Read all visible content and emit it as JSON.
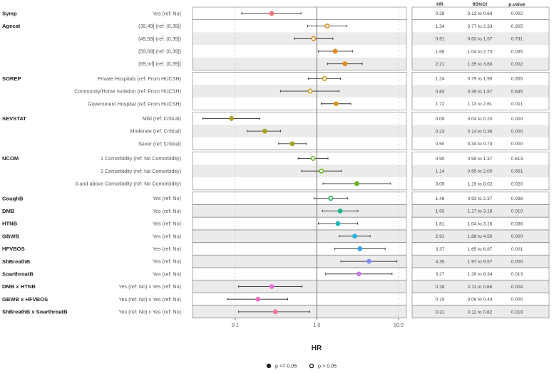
{
  "chart_data": {
    "type": "scatter",
    "subtype": "forest-plot",
    "xlabel": "HR",
    "x_scale": "log",
    "xlim": [
      0.03,
      12.5
    ],
    "x_ticks": [
      {
        "value": 0.1,
        "label": "0.1"
      },
      {
        "value": 1.0,
        "label": "1.0"
      },
      {
        "value": 10.0,
        "label": "10.0"
      }
    ],
    "reference_line": 1.0,
    "table_headers": {
      "hr": "HR",
      "ci": "95%CI",
      "p": "p.value"
    },
    "legend": {
      "significant_label": "p <= 0.05",
      "nonsignificant_label": "p > 0.05",
      "position": "bottom"
    },
    "groups": [
      {
        "name": "Symp",
        "shaded": false,
        "rows": [
          {
            "label": "Yes (ref: No)",
            "hr": 0.28,
            "lo": 0.12,
            "hi": 0.64,
            "hr_text": "0.28",
            "ci_text": "0.12 to 0.64",
            "p_text": "0.002",
            "sig": true,
            "color": "#f0707a"
          }
        ]
      },
      {
        "name": "Agecat",
        "shaded": false,
        "rows": [
          {
            "label": "(39,49] (ref: (0,39])",
            "hr": 1.34,
            "lo": 0.77,
            "hi": 2.33,
            "hr_text": "1.34",
            "ci_text": "0.77 to 2.33",
            "p_text": "0.305",
            "sig": false,
            "color": "#e08b1c"
          },
          {
            "label": "(49,59] (ref: (0,39])",
            "hr": 0.91,
            "lo": 0.53,
            "hi": 1.57,
            "hr_text": "0.91",
            "ci_text": "0.53 to 1.57",
            "p_text": "0.731",
            "sig": false,
            "color": "#e08b1c"
          },
          {
            "label": "(59,69] (ref: (0,39])",
            "hr": 1.68,
            "lo": 1.04,
            "hi": 2.73,
            "hr_text": "1.68",
            "ci_text": "1.04 to 2.73",
            "p_text": "0.035",
            "sig": true,
            "color": "#e08b1c"
          },
          {
            "label": "(69,Inf] (ref: (0,39])",
            "hr": 2.21,
            "lo": 1.35,
            "hi": 3.6,
            "hr_text": "2.21",
            "ci_text": "1.35 to 3.60",
            "p_text": "0.002",
            "sig": true,
            "color": "#e08b1c"
          }
        ]
      },
      {
        "name": "SOREP",
        "shaded": false,
        "rows": [
          {
            "label": "Private Hospitals (ref: From HUCSH)",
            "hr": 1.24,
            "lo": 0.79,
            "hi": 1.95,
            "hr_text": "1.24",
            "ci_text": "0.79 to 1.95",
            "p_text": "0.355",
            "sig": false,
            "color": "#d39a1a"
          },
          {
            "label": "Community/Home Isolation (ref: From HUCSH)",
            "hr": 0.83,
            "lo": 0.36,
            "hi": 1.87,
            "hr_text": "0.83",
            "ci_text": "0.36 to 1.87",
            "p_text": "0.645",
            "sig": false,
            "color": "#d39a1a"
          },
          {
            "label": "Government Hospital (ref: From HUCSH)",
            "hr": 1.72,
            "lo": 1.13,
            "hi": 2.61,
            "hr_text": "1.72",
            "ci_text": "1.13 to 2.61",
            "p_text": "0.011",
            "sig": true,
            "color": "#d39a1a"
          }
        ]
      },
      {
        "name": "SEVSTAT",
        "shaded": false,
        "rows": [
          {
            "label": "Mild (ref: Critical)",
            "hr": 0.09,
            "lo": 0.04,
            "hi": 0.2,
            "hr_text": "0.09",
            "ci_text": "0.04 to 0.20",
            "p_text": "0.000",
            "sig": true,
            "color": "#a5a020"
          },
          {
            "label": "Moderate (ref: Critical)",
            "hr": 0.23,
            "lo": 0.14,
            "hi": 0.36,
            "hr_text": "0.23",
            "ci_text": "0.14 to 0.36",
            "p_text": "0.000",
            "sig": true,
            "color": "#a5a020"
          },
          {
            "label": "Sever (ref: Critical)",
            "hr": 0.5,
            "lo": 0.34,
            "hi": 0.74,
            "hr_text": "0.50",
            "ci_text": "0.34 to 0.74",
            "p_text": "0.000",
            "sig": true,
            "color": "#a5a020"
          }
        ]
      },
      {
        "name": "NCOM",
        "shaded": false,
        "rows": [
          {
            "label": "1 Comorbidity (ref: No Comorbidity)",
            "hr": 0.9,
            "lo": 0.59,
            "hi": 1.37,
            "hr_text": "0.90",
            "ci_text": "0.59 to 1.37",
            "p_text": "0.613",
            "sig": false,
            "color": "#6cb324"
          },
          {
            "label": "2 Comorbidity (ref: No Comorbidity)",
            "hr": 1.14,
            "lo": 0.65,
            "hi": 2.0,
            "hr_text": "1.14",
            "ci_text": "0.65 to 2.00",
            "p_text": "0.651",
            "sig": false,
            "color": "#6cb324"
          },
          {
            "label": "3 and above Comorbidity (ref: No Comorbidity)",
            "hr": 3.09,
            "lo": 1.19,
            "hi": 8.02,
            "hr_text": "3.09",
            "ci_text": "1.19 to 8.02",
            "p_text": "0.020",
            "sig": true,
            "color": "#6cb324"
          }
        ]
      },
      {
        "name": "CoughB",
        "shaded": false,
        "rows": [
          {
            "label": "Yes (ref: No)",
            "hr": 1.48,
            "lo": 0.93,
            "hi": 2.37,
            "hr_text": "1.48",
            "ci_text": "0.93 to 2.37",
            "p_text": "0.096",
            "sig": false,
            "color": "#27b35a"
          }
        ]
      },
      {
        "name": "DMB",
        "shaded": true,
        "rows": [
          {
            "label": "Yes (ref: No)",
            "hr": 1.93,
            "lo": 1.17,
            "hi": 3.18,
            "hr_text": "1.93",
            "ci_text": "1.17 to 3.18",
            "p_text": "0.010",
            "sig": true,
            "color": "#1fb58c"
          }
        ]
      },
      {
        "name": "HTNB",
        "shaded": false,
        "rows": [
          {
            "label": "Yes (ref: No)",
            "hr": 1.81,
            "lo": 1.04,
            "hi": 3.16,
            "hr_text": "1.81",
            "ci_text": "1.04 to 3.16",
            "p_text": "0.036",
            "sig": true,
            "color": "#1cb8bf"
          }
        ]
      },
      {
        "name": "GBWB",
        "shaded": true,
        "rows": [
          {
            "label": "Yes (ref: No)",
            "hr": 2.91,
            "lo": 1.88,
            "hi": 4.5,
            "hr_text": "2.91",
            "ci_text": "1.88 to 4.50",
            "p_text": "0.000",
            "sig": true,
            "color": "#23b0db"
          }
        ]
      },
      {
        "name": "HFVBOS",
        "shaded": false,
        "rows": [
          {
            "label": "Yes (ref: No)",
            "hr": 3.37,
            "lo": 1.65,
            "hi": 6.87,
            "hr_text": "3.37",
            "ci_text": "1.65 to 6.87",
            "p_text": "0.001",
            "sig": true,
            "color": "#3aa2e8"
          }
        ]
      },
      {
        "name": "ShBreathB",
        "shaded": true,
        "rows": [
          {
            "label": "Yes (ref: No)",
            "hr": 4.35,
            "lo": 1.97,
            "hi": 9.57,
            "hr_text": "4.35",
            "ci_text": "1.97 to 9.57",
            "p_text": "0.000",
            "sig": true,
            "color": "#7f8ef0"
          }
        ]
      },
      {
        "name": "SoarthroatB",
        "shaded": false,
        "rows": [
          {
            "label": "Yes (ref: No)",
            "hr": 3.27,
            "lo": 1.28,
            "hi": 8.34,
            "hr_text": "3.27",
            "ci_text": "1.28 to 8.34",
            "p_text": "0.013",
            "sig": true,
            "color": "#c77ce8"
          }
        ]
      },
      {
        "name": "DMB x HTNB",
        "shaded": true,
        "rows": [
          {
            "label": "Yes (ref: No) x Yes (ref: No)",
            "hr": 0.28,
            "lo": 0.11,
            "hi": 0.66,
            "hr_text": "0.28",
            "ci_text": "0.11 to 0.66",
            "p_text": "0.004",
            "sig": true,
            "color": "#e86ed8"
          }
        ]
      },
      {
        "name": "GBWB x HFVBOS",
        "shaded": false,
        "rows": [
          {
            "label": "Yes (ref: No) x Yes (ref: No)",
            "hr": 0.19,
            "lo": 0.08,
            "hi": 0.44,
            "hr_text": "0.19",
            "ci_text": "0.08 to 0.44",
            "p_text": "0.000",
            "sig": true,
            "color": "#ef6cc6"
          }
        ]
      },
      {
        "name": "ShBreathB x SoarthroatB",
        "shaded": true,
        "rows": [
          {
            "label": "Yes (ref: No) x Yes (ref: No)",
            "hr": 0.31,
            "lo": 0.11,
            "hi": 0.82,
            "hr_text": "0.31",
            "ci_text": "0.11 to 0.82",
            "p_text": "0.019",
            "sig": true,
            "color": "#f56fa8"
          }
        ]
      }
    ]
  }
}
